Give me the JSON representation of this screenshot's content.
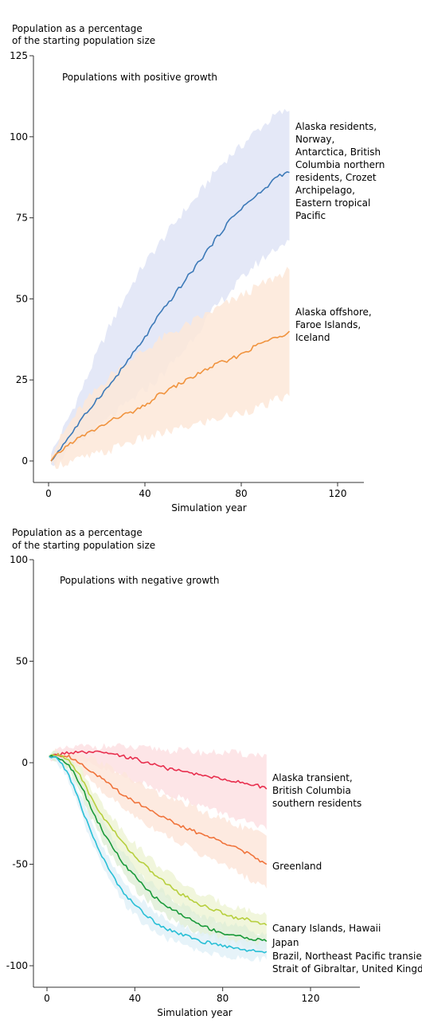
{
  "chart_data": [
    {
      "type": "line",
      "title": "Populations with positive growth",
      "ylabel": [
        "Population as a percentage",
        "of the starting population size"
      ],
      "xlabel": "Simulation year",
      "xlim": [
        -5,
        130
      ],
      "ylim": [
        -7,
        125
      ],
      "xticks": [
        0,
        40,
        80,
        120
      ],
      "yticks": [
        0,
        25,
        50,
        75,
        100,
        125
      ],
      "ytick_labels": [
        "0",
        "25",
        "50",
        "75",
        "100",
        "125"
      ],
      "series": [
        {
          "name": "Alaska residents, Norway, Antarctica, British Columbia northern residents, Crozet Archipelago, Eastern tropical Pacific",
          "name_lines": [
            "Alaska residents,",
            "Norway,",
            "Antarctica, British",
            "Columbia northern",
            "residents, Crozet",
            "Archipelago,",
            "Eastern tropical",
            "Pacific"
          ],
          "color": "#3d7ab8",
          "band_color": "#dfe4f6",
          "x": [
            1,
            5,
            10,
            15,
            20,
            25,
            30,
            35,
            40,
            45,
            50,
            55,
            60,
            65,
            70,
            75,
            80,
            85,
            90,
            95,
            100
          ],
          "y": [
            0,
            4,
            9,
            14,
            19,
            23,
            28,
            33,
            38,
            44,
            49,
            54,
            59,
            64,
            69,
            74,
            78,
            81,
            84,
            88,
            89
          ],
          "lower": [
            -1,
            1,
            4,
            7,
            10,
            13,
            16,
            19,
            22,
            25,
            29,
            33,
            38,
            43,
            48,
            52,
            56,
            60,
            63,
            66,
            68
          ],
          "upper": [
            2,
            8,
            16,
            24,
            33,
            41,
            48,
            55,
            61,
            66,
            71,
            76,
            80,
            85,
            90,
            94,
            97,
            101,
            104,
            107,
            108
          ]
        },
        {
          "name": "Alaska offshore, Faroe Islands, Iceland",
          "name_lines": [
            "Alaska offshore,",
            "Faroe Islands,",
            "Iceland"
          ],
          "color": "#f0933e",
          "band_color": "#fde8d8",
          "x": [
            1,
            5,
            10,
            15,
            20,
            25,
            30,
            35,
            40,
            45,
            50,
            55,
            60,
            65,
            70,
            75,
            80,
            85,
            90,
            95,
            100
          ],
          "y": [
            0,
            3,
            6,
            8,
            10,
            12,
            14,
            15,
            17,
            20,
            22,
            24,
            26,
            28,
            30,
            31,
            33,
            35,
            37,
            38,
            40
          ],
          "lower": [
            -1,
            -1,
            0,
            1,
            2,
            3,
            5,
            6,
            7,
            8,
            9,
            10,
            11,
            12,
            13,
            14,
            15,
            16,
            17,
            19,
            20
          ],
          "upper": [
            2,
            7,
            13,
            18,
            22,
            26,
            29,
            32,
            34,
            37,
            39,
            41,
            43,
            45,
            47,
            49,
            51,
            53,
            55,
            57,
            59
          ]
        }
      ]
    },
    {
      "type": "line",
      "title": "Populations with negative growth",
      "ylabel": [
        "Population as a percentage",
        "of the starting population size"
      ],
      "xlabel": "Simulation year",
      "xlim": [
        -5,
        130
      ],
      "ylim": [
        -110,
        100
      ],
      "xticks": [
        0,
        40,
        80,
        120
      ],
      "yticks": [
        -100,
        -50,
        0,
        50,
        100
      ],
      "ytick_labels": [
        "-100",
        "-50",
        "0",
        "50",
        "100"
      ],
      "series": [
        {
          "name": "Alaska transient, British Columbia southern residents",
          "name_lines": [
            "Alaska transient,",
            "British Columbia",
            "southern residents"
          ],
          "color": "#e8304f",
          "band_color": "#fde0e3",
          "x": [
            1,
            5,
            10,
            15,
            20,
            25,
            30,
            35,
            40,
            45,
            50,
            55,
            60,
            65,
            70,
            75,
            80,
            85,
            90,
            95,
            100
          ],
          "y": [
            3,
            4,
            5,
            5,
            5,
            5,
            4,
            3,
            2,
            0,
            -1,
            -3,
            -4,
            -5,
            -6,
            -7,
            -8,
            -9,
            -10,
            -11,
            -13
          ],
          "lower": [
            2,
            2,
            1,
            0,
            -1,
            -3,
            -5,
            -7,
            -9,
            -11,
            -13,
            -15,
            -17,
            -19,
            -21,
            -23,
            -25,
            -27,
            -29,
            -31,
            -33
          ],
          "upper": [
            4,
            6,
            7,
            8,
            8,
            8,
            8,
            8,
            7,
            7,
            7,
            6,
            6,
            6,
            5,
            5,
            5,
            5,
            4,
            4,
            4
          ]
        },
        {
          "name": "Greenland",
          "name_lines": [
            "Greenland"
          ],
          "color": "#f0743c",
          "band_color": "#fde6da",
          "x": [
            1,
            5,
            10,
            15,
            20,
            25,
            30,
            35,
            40,
            45,
            50,
            55,
            60,
            65,
            70,
            75,
            80,
            85,
            90,
            95,
            100
          ],
          "y": [
            3,
            4,
            3,
            0,
            -4,
            -8,
            -12,
            -16,
            -19,
            -22,
            -25,
            -28,
            -31,
            -33,
            -35,
            -37,
            -39,
            -41,
            -44,
            -47,
            -50
          ],
          "lower": [
            2,
            2,
            0,
            -4,
            -9,
            -14,
            -18,
            -23,
            -26,
            -30,
            -33,
            -36,
            -39,
            -42,
            -45,
            -48,
            -50,
            -53,
            -56,
            -59,
            -62
          ],
          "upper": [
            4,
            6,
            6,
            5,
            3,
            0,
            -3,
            -6,
            -9,
            -12,
            -15,
            -17,
            -19,
            -21,
            -24,
            -26,
            -28,
            -30,
            -32,
            -34,
            -36
          ]
        },
        {
          "name": "Canary Islands, Hawaii",
          "name_lines": [
            "Canary Islands, Hawaii"
          ],
          "color": "#b7cf3e",
          "band_color": "#eef4d6",
          "x": [
            1,
            5,
            10,
            15,
            20,
            25,
            30,
            35,
            40,
            45,
            50,
            55,
            60,
            65,
            70,
            75,
            80,
            85,
            90,
            95,
            100
          ],
          "y": [
            3,
            4,
            1,
            -6,
            -17,
            -26,
            -33,
            -40,
            -46,
            -51,
            -56,
            -60,
            -64,
            -67,
            -70,
            -72,
            -74,
            -76,
            -77,
            -78,
            -80
          ],
          "lower": [
            2,
            2,
            -2,
            -10,
            -22,
            -32,
            -40,
            -47,
            -53,
            -58,
            -63,
            -67,
            -71,
            -74,
            -77,
            -79,
            -81,
            -83,
            -84,
            -85,
            -86
          ],
          "upper": [
            4,
            5,
            4,
            -2,
            -12,
            -20,
            -27,
            -34,
            -40,
            -45,
            -50,
            -54,
            -58,
            -62,
            -65,
            -67,
            -69,
            -71,
            -72,
            -74,
            -75
          ]
        },
        {
          "name": "Japan",
          "name_lines": [
            "Japan"
          ],
          "color": "#1a9a3a",
          "band_color": "#e0efd8",
          "x": [
            1,
            5,
            10,
            15,
            20,
            25,
            30,
            35,
            40,
            45,
            50,
            55,
            60,
            65,
            70,
            75,
            80,
            85,
            90,
            95,
            100
          ],
          "y": [
            3,
            3,
            -1,
            -10,
            -22,
            -33,
            -42,
            -50,
            -56,
            -62,
            -67,
            -71,
            -74,
            -77,
            -80,
            -82,
            -84,
            -85,
            -86,
            -87,
            -88
          ],
          "lower": [
            2,
            1,
            -4,
            -14,
            -27,
            -38,
            -47,
            -55,
            -62,
            -67,
            -72,
            -76,
            -79,
            -82,
            -84,
            -86,
            -88,
            -89,
            -90,
            -91,
            -92
          ],
          "upper": [
            4,
            5,
            2,
            -6,
            -17,
            -28,
            -37,
            -45,
            -51,
            -57,
            -61,
            -65,
            -69,
            -72,
            -75,
            -77,
            -79,
            -80,
            -81,
            -83,
            -84
          ]
        },
        {
          "name": "Brazil, Northeast Pacific transient, Strait of Gibraltar, United Kingdom",
          "name_lines": [
            "Brazil, Northeast Pacific transient,",
            "Strait of Gibraltar, United Kingdom"
          ],
          "color": "#29bfd6",
          "band_color": "#e2f1f8",
          "x": [
            1,
            5,
            10,
            15,
            20,
            25,
            30,
            35,
            40,
            45,
            50,
            55,
            60,
            65,
            70,
            75,
            80,
            85,
            90,
            95,
            100
          ],
          "y": [
            3,
            2,
            -6,
            -20,
            -34,
            -46,
            -56,
            -64,
            -70,
            -75,
            -79,
            -82,
            -84,
            -86,
            -88,
            -89,
            -90,
            -91,
            -92,
            -93,
            -93
          ],
          "lower": [
            2,
            0,
            -9,
            -24,
            -39,
            -51,
            -61,
            -69,
            -75,
            -80,
            -84,
            -87,
            -89,
            -91,
            -93,
            -94,
            -95,
            -96,
            -96,
            -97,
            -97
          ],
          "upper": [
            4,
            4,
            -3,
            -16,
            -29,
            -41,
            -51,
            -59,
            -65,
            -70,
            -74,
            -77,
            -80,
            -82,
            -84,
            -85,
            -86,
            -87,
            -88,
            -89,
            -89
          ]
        }
      ]
    }
  ]
}
